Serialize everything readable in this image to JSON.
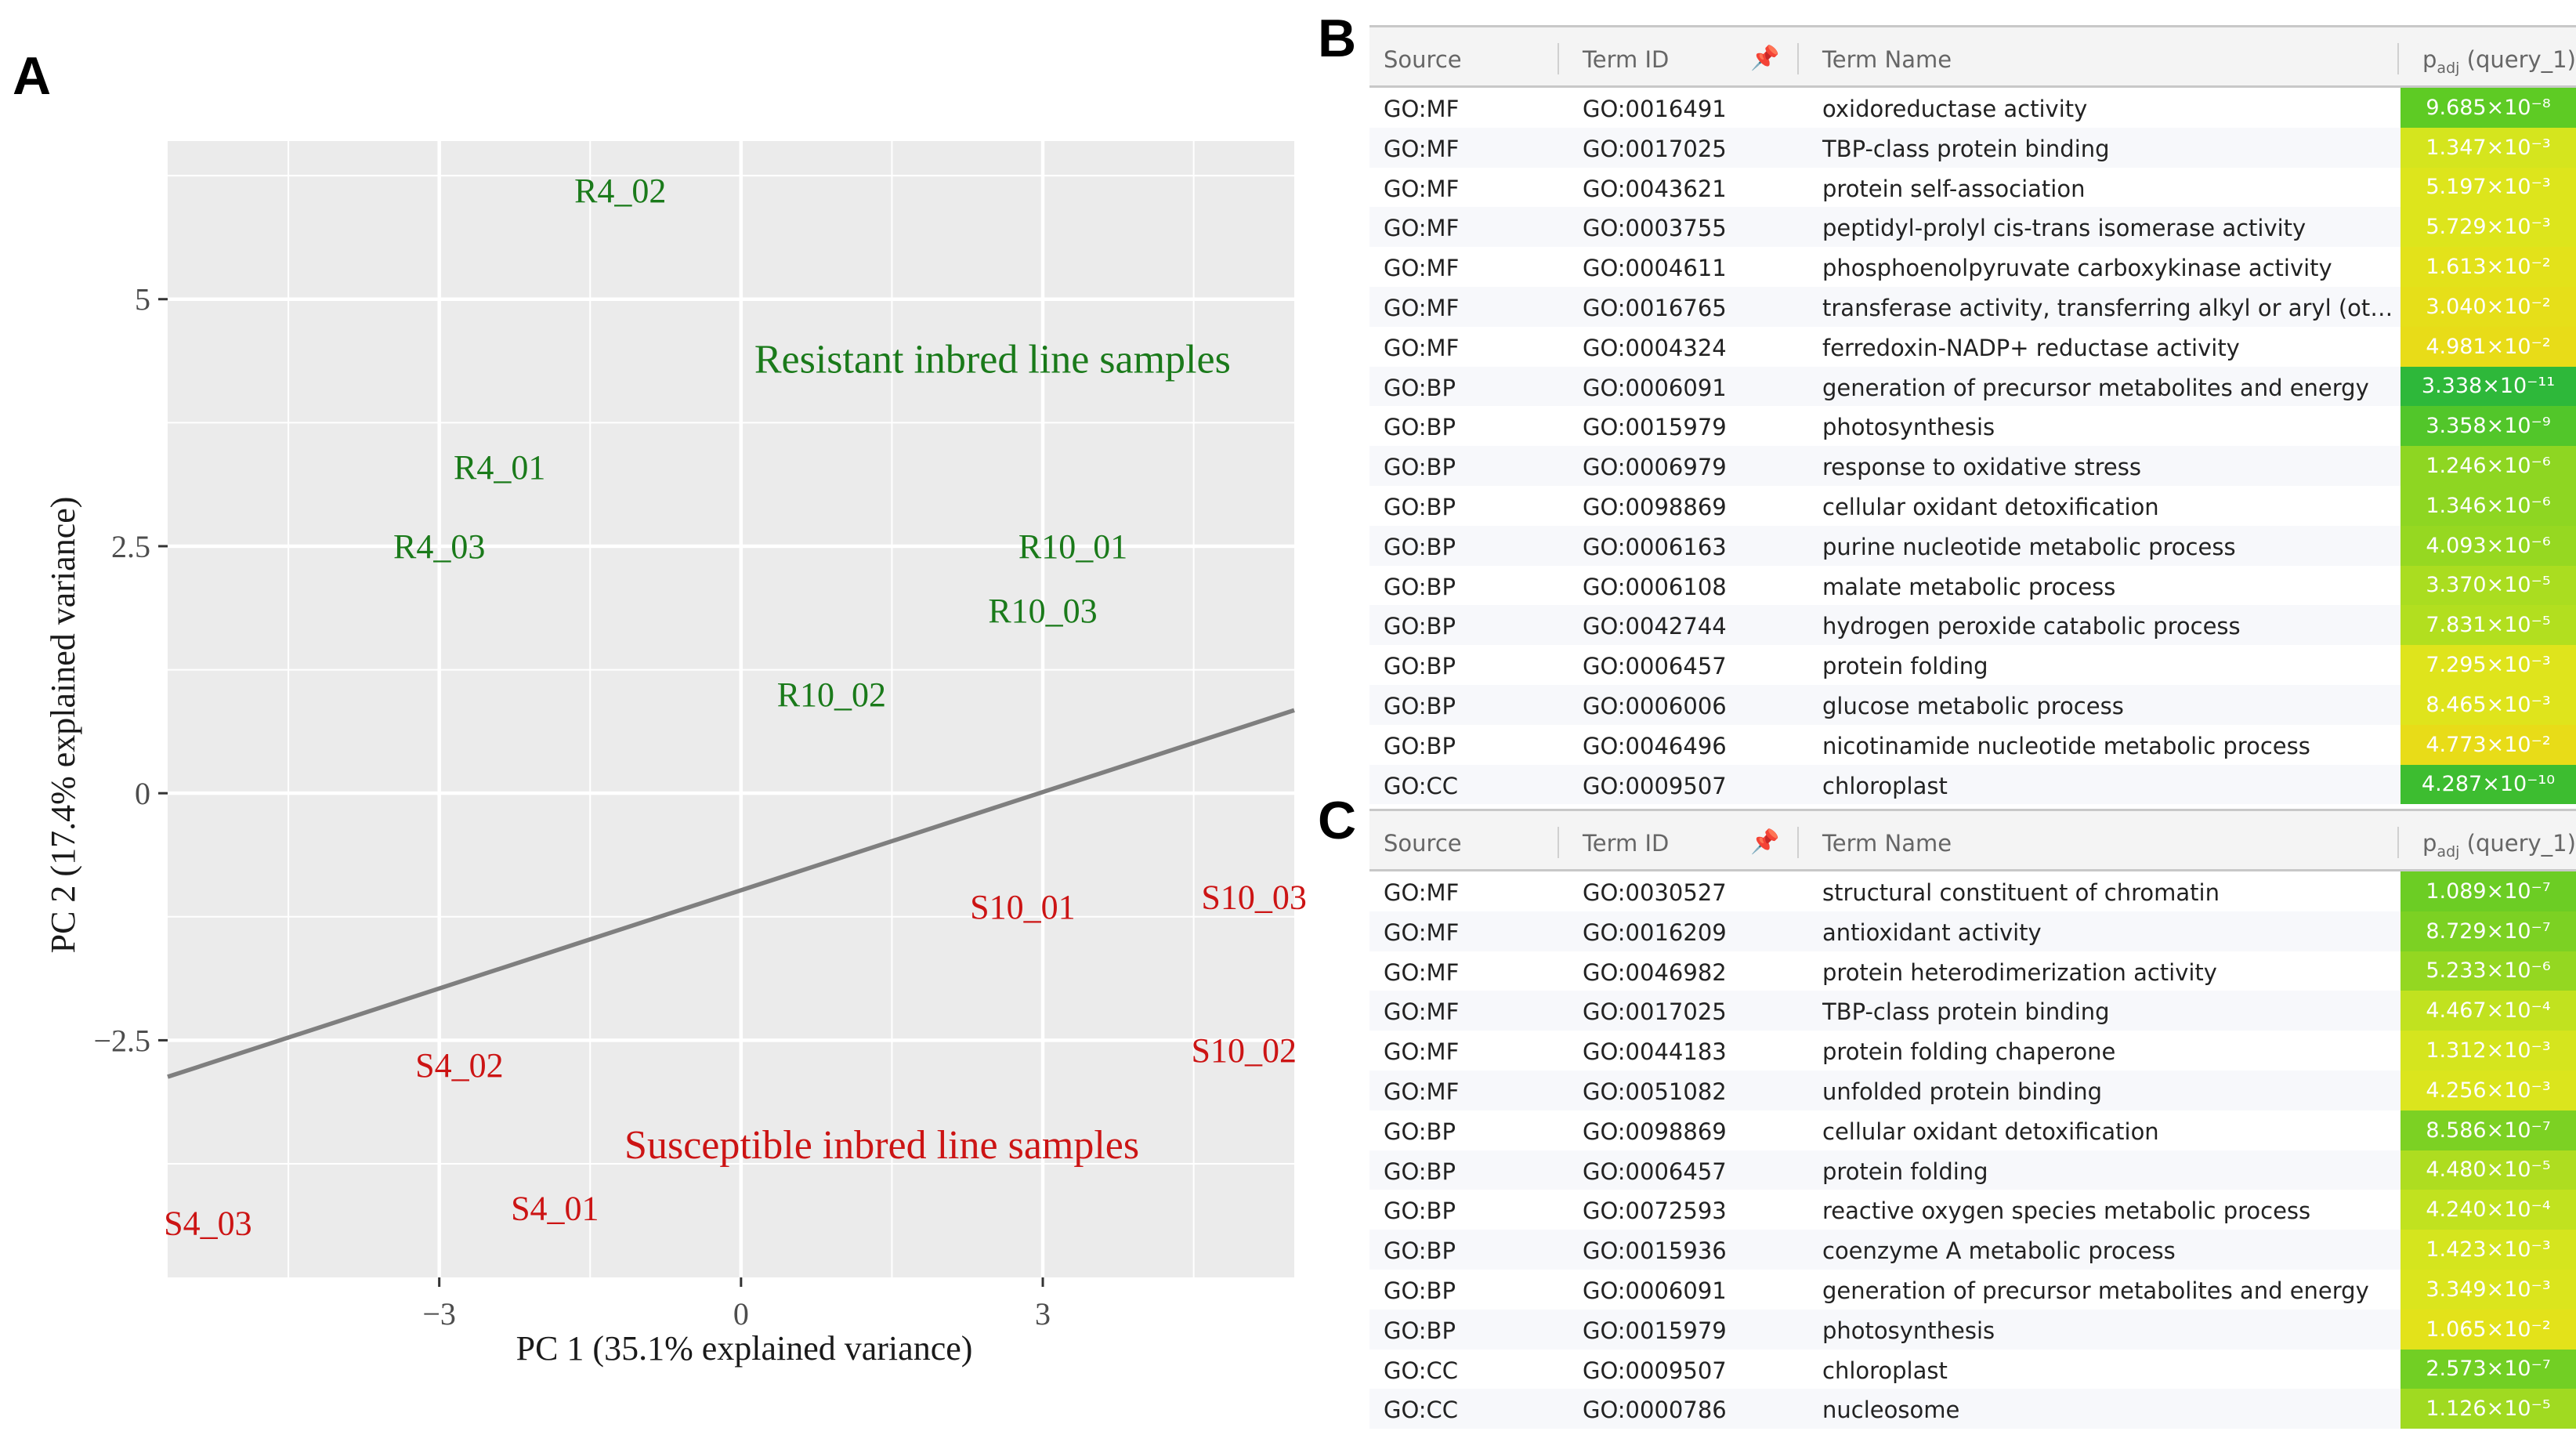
{
  "panels": {
    "A": "A",
    "B": "B",
    "C": "C"
  },
  "chart_data": {
    "type": "scatter",
    "xlabel": "PC 1 (35.1% explained variance)",
    "ylabel": "PC 2 (17.4% explained variance)",
    "xlim": [
      -5.7,
      5.5
    ],
    "ylim": [
      -4.9,
      6.6
    ],
    "x_ticks": [
      -3,
      0,
      3
    ],
    "y_ticks": [
      -2.5,
      0,
      2.5,
      5
    ],
    "x_tick_labels": [
      "−3",
      "0",
      "3"
    ],
    "y_tick_labels": [
      "−2.5",
      "0",
      "2.5",
      "5"
    ],
    "grid": true,
    "points": [
      {
        "label": "R4_02",
        "x": -1.2,
        "y": 6.1,
        "group": "resistant"
      },
      {
        "label": "R4_01",
        "x": -2.4,
        "y": 3.3,
        "group": "resistant"
      },
      {
        "label": "R4_03",
        "x": -3.0,
        "y": 2.5,
        "group": "resistant"
      },
      {
        "label": "R10_01",
        "x": 3.3,
        "y": 2.5,
        "group": "resistant"
      },
      {
        "label": "R10_03",
        "x": 3.0,
        "y": 1.85,
        "group": "resistant"
      },
      {
        "label": "R10_02",
        "x": 0.9,
        "y": 1.0,
        "group": "resistant"
      },
      {
        "label": "S10_01",
        "x": 2.8,
        "y": -1.15,
        "group": "susceptible"
      },
      {
        "label": "S10_03",
        "x": 5.1,
        "y": -1.05,
        "group": "susceptible"
      },
      {
        "label": "S10_02",
        "x": 5.0,
        "y": -2.6,
        "group": "susceptible"
      },
      {
        "label": "S4_02",
        "x": -2.8,
        "y": -2.75,
        "group": "susceptible"
      },
      {
        "label": "S4_01",
        "x": -1.85,
        "y": -4.2,
        "group": "susceptible"
      },
      {
        "label": "S4_03",
        "x": -5.3,
        "y": -4.35,
        "group": "susceptible"
      }
    ],
    "annotations": [
      {
        "text": "Resistant inbred line samples",
        "x": 2.5,
        "y": 4.4,
        "group": "resistant"
      },
      {
        "text": "Susceptible inbred line samples",
        "x": 1.4,
        "y": -3.55,
        "group": "susceptible"
      }
    ],
    "separator_line": {
      "x": [
        -5.7,
        5.5
      ],
      "y": [
        -2.87,
        0.84
      ]
    },
    "colors": {
      "resistant": "#1a7a1a",
      "susceptible": "#cc1414",
      "panel": "#ebebeb",
      "grid": "#ffffff",
      "line": "#7f7f7f"
    }
  },
  "tableB": {
    "headers": {
      "source": "Source",
      "term_id": "Term ID",
      "term_name": "Term Name",
      "padj_main": "p",
      "padj_sub": "adj",
      "padj_tail": " (query_1)"
    },
    "rows": [
      {
        "source": "GO:MF",
        "term_id": "GO:0016491",
        "term_name": "oxidoreductase activity",
        "padj": "9.685×10⁻⁸",
        "color": "#5ecb24"
      },
      {
        "source": "GO:MF",
        "term_id": "GO:0017025",
        "term_name": "TBP-class protein binding",
        "padj": "1.347×10⁻³",
        "color": "#d5e51e"
      },
      {
        "source": "GO:MF",
        "term_id": "GO:0043621",
        "term_name": "protein self-association",
        "padj": "5.197×10⁻³",
        "color": "#dde51c"
      },
      {
        "source": "GO:MF",
        "term_id": "GO:0003755",
        "term_name": "peptidyl-prolyl cis-trans isomerase activity",
        "padj": "5.729×10⁻³",
        "color": "#dde51c"
      },
      {
        "source": "GO:MF",
        "term_id": "GO:0004611",
        "term_name": "phosphoenolpyruvate carboxykinase activity",
        "padj": "1.613×10⁻²",
        "color": "#e3e21a"
      },
      {
        "source": "GO:MF",
        "term_id": "GO:0016765",
        "term_name": "transferase activity, transferring alkyl or aryl (other…",
        "padj": "3.040×10⁻²",
        "color": "#e6df19"
      },
      {
        "source": "GO:MF",
        "term_id": "GO:0004324",
        "term_name": "ferredoxin-NADP+ reductase activity",
        "padj": "4.981×10⁻²",
        "color": "#e8dc18"
      },
      {
        "source": "GO:BP",
        "term_id": "GO:0006091",
        "term_name": "generation of precursor metabolites and energy",
        "padj": "3.338×10⁻¹¹",
        "color": "#2eb83a"
      },
      {
        "source": "GO:BP",
        "term_id": "GO:0015979",
        "term_name": "photosynthesis",
        "padj": "3.358×10⁻⁹",
        "color": "#52c62a"
      },
      {
        "source": "GO:BP",
        "term_id": "GO:0006979",
        "term_name": "response to oxidative stress",
        "padj": "1.246×10⁻⁶",
        "color": "#8ed622"
      },
      {
        "source": "GO:BP",
        "term_id": "GO:0098869",
        "term_name": "cellular oxidant detoxification",
        "padj": "1.346×10⁻⁶",
        "color": "#8ed622"
      },
      {
        "source": "GO:BP",
        "term_id": "GO:0006163",
        "term_name": "purine nucleotide metabolic process",
        "padj": "4.093×10⁻⁶",
        "color": "#96d821"
      },
      {
        "source": "GO:BP",
        "term_id": "GO:0006108",
        "term_name": "malate metabolic process",
        "padj": "3.370×10⁻⁵",
        "color": "#aadd20"
      },
      {
        "source": "GO:BP",
        "term_id": "GO:0042744",
        "term_name": "hydrogen peroxide catabolic process",
        "padj": "7.831×10⁻⁵",
        "color": "#b2df1f"
      },
      {
        "source": "GO:BP",
        "term_id": "GO:0006457",
        "term_name": "protein folding",
        "padj": "7.295×10⁻³",
        "color": "#dfe41c"
      },
      {
        "source": "GO:BP",
        "term_id": "GO:0006006",
        "term_name": "glucose metabolic process",
        "padj": "8.465×10⁻³",
        "color": "#dfe41c"
      },
      {
        "source": "GO:BP",
        "term_id": "GO:0046496",
        "term_name": "nicotinamide nucleotide metabolic process",
        "padj": "4.773×10⁻²",
        "color": "#e8dc18"
      },
      {
        "source": "GO:CC",
        "term_id": "GO:0009507",
        "term_name": "chloroplast",
        "padj": "4.287×10⁻¹⁰",
        "color": "#3dbd30"
      }
    ]
  },
  "tableC": {
    "headers": {
      "source": "Source",
      "term_id": "Term ID",
      "term_name": "Term Name",
      "padj_main": "p",
      "padj_sub": "adj",
      "padj_tail": " (query_1)"
    },
    "rows": [
      {
        "source": "GO:MF",
        "term_id": "GO:0030527",
        "term_name": "structural constituent of chromatin",
        "padj": "1.089×10⁻⁷",
        "color": "#6ccd24"
      },
      {
        "source": "GO:MF",
        "term_id": "GO:0016209",
        "term_name": "antioxidant activity",
        "padj": "8.729×10⁻⁷",
        "color": "#7cd123"
      },
      {
        "source": "GO:MF",
        "term_id": "GO:0046982",
        "term_name": "protein heterodimerization activity",
        "padj": "5.233×10⁻⁶",
        "color": "#94d721"
      },
      {
        "source": "GO:MF",
        "term_id": "GO:0017025",
        "term_name": "TBP-class protein binding",
        "padj": "4.467×10⁻⁴",
        "color": "#c1e21f"
      },
      {
        "source": "GO:MF",
        "term_id": "GO:0044183",
        "term_name": "protein folding chaperone",
        "padj": "1.312×10⁻³",
        "color": "#d5e51e"
      },
      {
        "source": "GO:MF",
        "term_id": "GO:0051082",
        "term_name": "unfolded protein binding",
        "padj": "4.256×10⁻³",
        "color": "#dbe51d"
      },
      {
        "source": "GO:BP",
        "term_id": "GO:0098869",
        "term_name": "cellular oxidant detoxification",
        "padj": "8.586×10⁻⁷",
        "color": "#7cd123"
      },
      {
        "source": "GO:BP",
        "term_id": "GO:0006457",
        "term_name": "protein folding",
        "padj": "4.480×10⁻⁵",
        "color": "#aedd20"
      },
      {
        "source": "GO:BP",
        "term_id": "GO:0072593",
        "term_name": "reactive oxygen species metabolic process",
        "padj": "4.240×10⁻⁴",
        "color": "#c1e21f"
      },
      {
        "source": "GO:BP",
        "term_id": "GO:0015936",
        "term_name": "coenzyme A metabolic process",
        "padj": "1.423×10⁻³",
        "color": "#d5e51e"
      },
      {
        "source": "GO:BP",
        "term_id": "GO:0006091",
        "term_name": "generation of precursor metabolites and energy",
        "padj": "3.349×10⁻³",
        "color": "#dbe51d"
      },
      {
        "source": "GO:BP",
        "term_id": "GO:0015979",
        "term_name": "photosynthesis",
        "padj": "1.065×10⁻²",
        "color": "#e3e21a"
      },
      {
        "source": "GO:CC",
        "term_id": "GO:0009507",
        "term_name": "chloroplast",
        "padj": "2.573×10⁻⁷",
        "color": "#72cf24"
      },
      {
        "source": "GO:CC",
        "term_id": "GO:0000786",
        "term_name": "nucleosome",
        "padj": "1.126×10⁻⁵",
        "color": "#a0da21"
      }
    ]
  }
}
